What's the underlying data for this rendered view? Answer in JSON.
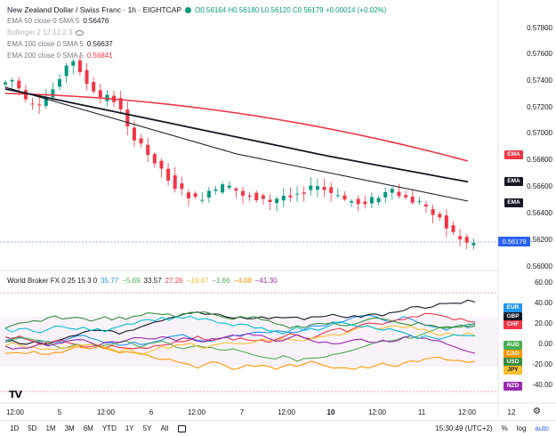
{
  "header": {
    "symbol": "New Zealand Dollar / Swiss Franc · 1h · EIGHTCAP",
    "ohlc": "O0.56164 H0.56180 L0.56120 C0.56179 +0.00014 (+0.02%)",
    "status_color": "#089981"
  },
  "indicators": [
    {
      "label": "EMA 50 close 0 SMA 5",
      "value": "0.56476",
      "color": "#131722"
    },
    {
      "label": "Bollinger 2 12 12.2 3",
      "value": "",
      "color": "#b2b5be"
    },
    {
      "label": "EMA 100 close 0 SMA 5",
      "value": "0.56637",
      "color": "#131722"
    },
    {
      "label": "EMA 200 close 0 SMA 5",
      "value": "0.56841",
      "color": "#f23645"
    }
  ],
  "price_axis": [
    "0.57800",
    "0.57600",
    "0.57400",
    "0.57200",
    "0.57000",
    "0.56800",
    "0.56600",
    "0.56400",
    "0.56200",
    "0.56000"
  ],
  "price_tags": [
    {
      "label": "EMA",
      "color": "#f23645"
    },
    {
      "label": "EMA",
      "color": "#131722"
    },
    {
      "label": "EMA",
      "color": "#131722"
    }
  ],
  "last_price": "0.56179",
  "subpanel": {
    "title": "World Broker FX 0 25 15 3 0",
    "values": [
      {
        "v": "35.77",
        "color": "#2196f3"
      },
      {
        "v": "−5.69",
        "color": "#4caf50"
      },
      {
        "v": "33.57",
        "color": "#131722"
      },
      {
        "v": "27.26",
        "color": "#f23645"
      },
      {
        "v": "−19.47",
        "color": "#ff9800"
      },
      {
        "v": "−1.66",
        "color": "#4caf50"
      },
      {
        "v": "−4.08",
        "color": "#ff9800"
      },
      {
        "v": "−41.30",
        "color": "#9c27b0"
      }
    ],
    "axis": [
      "60.00",
      "40.00",
      "20.00",
      "0.00",
      "-20.00",
      "-40.00"
    ],
    "currency_tags": [
      {
        "label": "EUR",
        "color": "#2196f3"
      },
      {
        "label": "GBP",
        "color": "#131722"
      },
      {
        "label": "CHF",
        "color": "#f23645"
      },
      {
        "label": "AUD",
        "color": "#4caf50"
      },
      {
        "label": "CAD",
        "color": "#ff9800"
      },
      {
        "label": "USD",
        "color": "#388e3c"
      },
      {
        "label": "JPY",
        "color": "#fbc02d"
      },
      {
        "label": "NZD",
        "color": "#9c27b0"
      }
    ]
  },
  "time_axis": [
    "12:00",
    "5",
    "12:00",
    "6",
    "12:00",
    "7",
    "12:00",
    "10",
    "12:00",
    "11",
    "12:00",
    "12"
  ],
  "bottom_bar": {
    "timeframes": [
      "1D",
      "5D",
      "1M",
      "3M",
      "6M",
      "YTD",
      "1Y",
      "5Y",
      "All"
    ],
    "clock": "15:30:49 (UTC+2)",
    "pct": "%",
    "log": "log",
    "auto": "auto"
  },
  "logo": "TV"
}
